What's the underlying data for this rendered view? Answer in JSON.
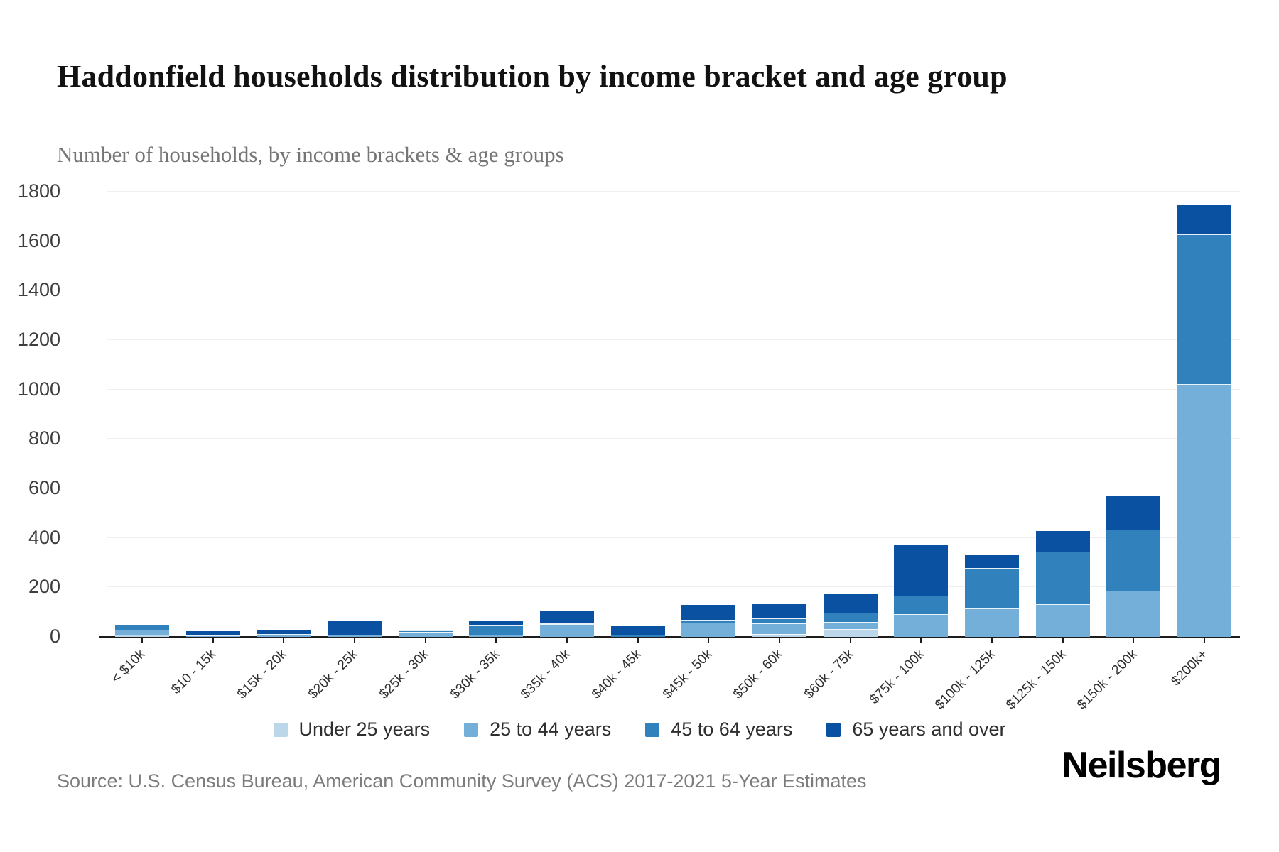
{
  "header": {
    "title": "Haddonfield households distribution by income bracket and age group",
    "subtitle": "Number of households, by income brackets & age groups"
  },
  "footer": {
    "source": "Source: U.S. Census Bureau, American Community Survey (ACS) 2017-2021 5-Year Estimates",
    "brand": "Neilsberg"
  },
  "chart_data": {
    "type": "bar",
    "stacked": true,
    "title": "Haddonfield households distribution by income bracket and age group",
    "subtitle": "Number of households, by income brackets & age groups",
    "xlabel": "",
    "ylabel": "Number of households",
    "ylim": [
      0,
      1800
    ],
    "ytick_step": 200,
    "yticks": [
      0,
      200,
      400,
      600,
      800,
      1000,
      1200,
      1400,
      1600,
      1800
    ],
    "grid": true,
    "legend_position": "bottom",
    "categories": [
      "< $10k",
      "$10 - 15k",
      "$15k - 20k",
      "$20k - 25k",
      "$25k - 30k",
      "$30k - 35k",
      "$35k - 40k",
      "$40k - 45k",
      "$45k - 50k",
      "$50k - 60k",
      "$60k - 75k",
      "$75k - 100k",
      "$100k - 125k",
      "$125k - 150k",
      "$150k - 200k",
      "$200k+"
    ],
    "series": [
      {
        "name": "Under 25 years",
        "color": "#bdd7ea",
        "values": [
          5,
          0,
          0,
          0,
          0,
          0,
          0,
          0,
          0,
          8,
          30,
          0,
          0,
          0,
          0,
          0
        ]
      },
      {
        "name": "25 to 44 years",
        "color": "#74afd9",
        "values": [
          20,
          4,
          8,
          6,
          18,
          6,
          48,
          0,
          55,
          45,
          28,
          90,
          112,
          130,
          185,
          1020
        ]
      },
      {
        "name": "45 to 64 years",
        "color": "#3181bd",
        "values": [
          25,
          0,
          0,
          0,
          4,
          40,
          5,
          5,
          12,
          20,
          38,
          75,
          165,
          212,
          245,
          605
        ]
      },
      {
        "name": "65 years and over",
        "color": "#0b51a1",
        "values": [
          0,
          18,
          20,
          60,
          6,
          20,
          52,
          40,
          62,
          58,
          80,
          207,
          55,
          85,
          140,
          120
        ]
      }
    ],
    "totals": [
      50,
      22,
      28,
      66,
      28,
      66,
      105,
      45,
      129,
      131,
      176,
      372,
      332,
      427,
      570,
      1745
    ]
  },
  "colors": {
    "axis": "#1d1d1d",
    "gridline": "#efefef",
    "tick_label": "#3d3d3d"
  }
}
